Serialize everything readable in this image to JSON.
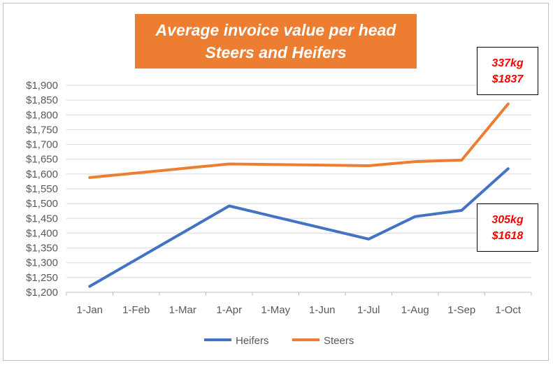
{
  "chart_data": {
    "type": "line",
    "title_line1": "Average invoice value per head",
    "title_line2": "Steers and Heifers",
    "categories": [
      "1-Jan",
      "1-Feb",
      "1-Mar",
      "1-Apr",
      "1-May",
      "1-Jun",
      "1-Jul",
      "1-Aug",
      "1-Sep",
      "1-Oct"
    ],
    "y_ticks": [
      "$1,200",
      "$1,250",
      "$1,300",
      "$1,350",
      "$1,400",
      "$1,450",
      "$1,500",
      "$1,550",
      "$1,600",
      "$1,650",
      "$1,700",
      "$1,750",
      "$1,800",
      "$1,850",
      "$1,900"
    ],
    "ylim": [
      1200,
      1900
    ],
    "grid": true,
    "legend_position": "bottom",
    "series": [
      {
        "name": "Heifers",
        "color": "#4472c4",
        "points": [
          [
            0,
            1220
          ],
          [
            3,
            1492
          ],
          [
            6,
            1380
          ],
          [
            7,
            1456
          ],
          [
            8,
            1477
          ],
          [
            9,
            1618
          ]
        ]
      },
      {
        "name": "Steers",
        "color": "#ed7d31",
        "points": [
          [
            0,
            1588
          ],
          [
            3,
            1634
          ],
          [
            6,
            1628
          ],
          [
            7,
            1642
          ],
          [
            8,
            1647
          ],
          [
            9,
            1837
          ]
        ]
      }
    ],
    "annotations": {
      "steers_weight": "337kg",
      "steers_value": "$1837",
      "heifers_weight": "305kg",
      "heifers_value": "$1618"
    }
  }
}
